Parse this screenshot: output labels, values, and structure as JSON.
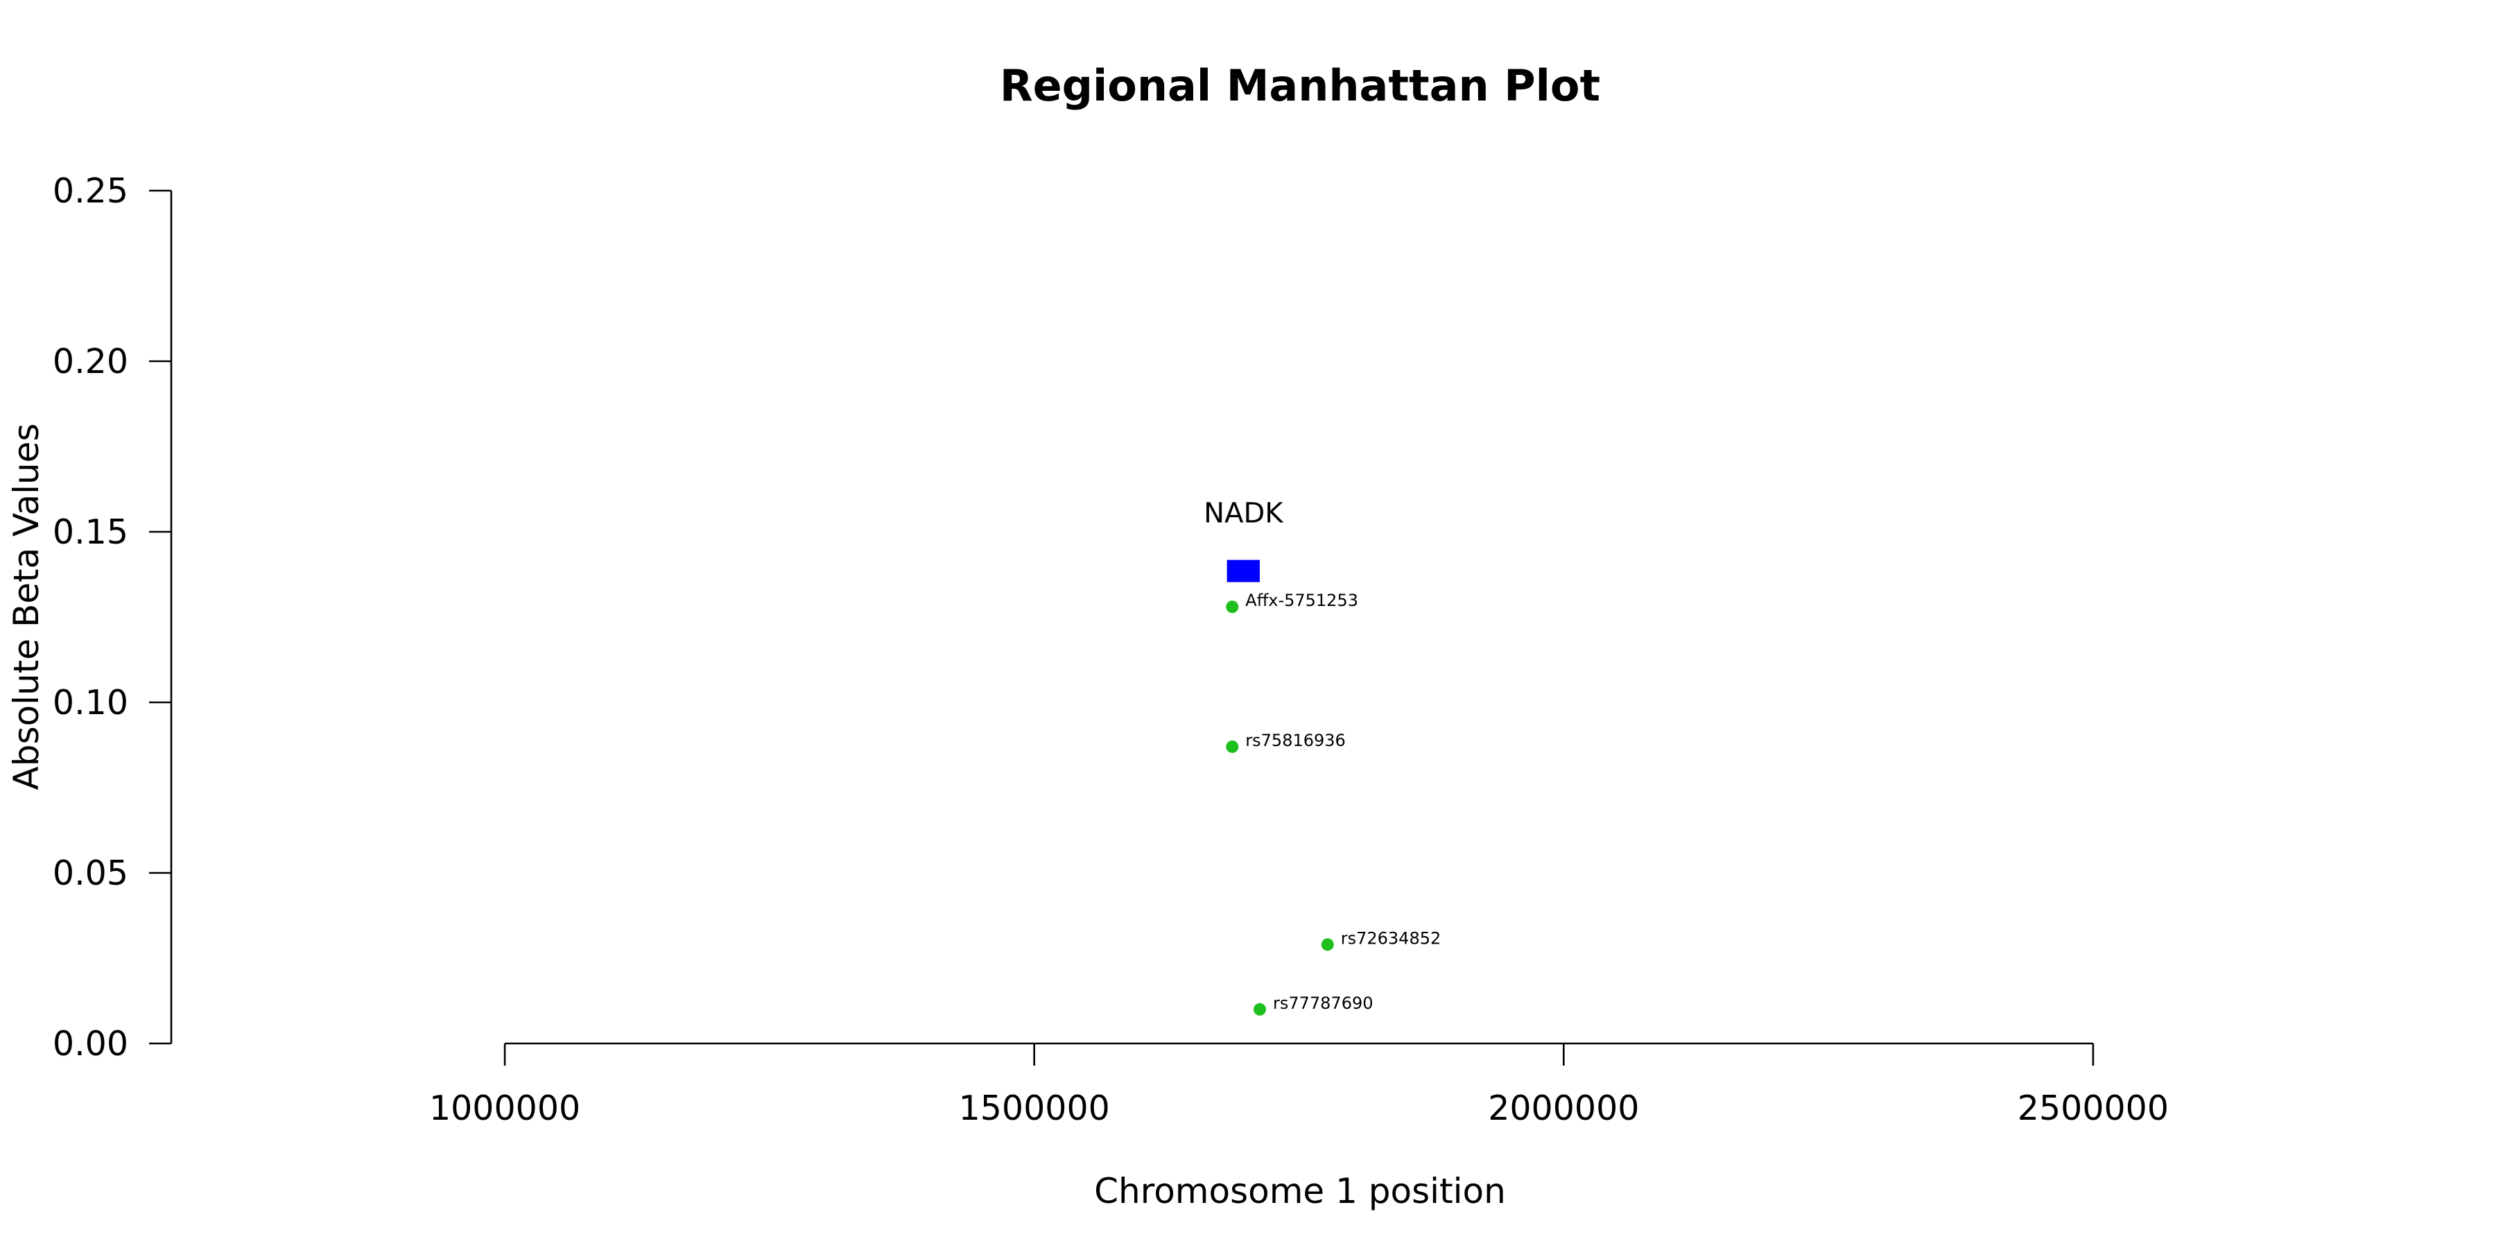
{
  "chart_data": {
    "type": "scatter",
    "title": "Regional Manhattan Plot",
    "xlabel": "Chromosome 1 position",
    "ylabel": "Absolute Beta Values",
    "xlim": [
      685000,
      2815000
    ],
    "ylim": [
      0,
      0.25
    ],
    "x_ticks": [
      1000000,
      1500000,
      2000000,
      2500000
    ],
    "x_tick_labels": [
      "1000000",
      "1500000",
      "2000000",
      "2500000"
    ],
    "y_ticks": [
      0,
      0.05,
      0.1,
      0.15,
      0.2,
      0.25
    ],
    "y_tick_labels": [
      "0.00",
      "0.05",
      "0.10",
      "0.15",
      "0.20",
      "0.25"
    ],
    "grid": false,
    "series": [
      {
        "color": "#1fbf1f",
        "points": [
          {
            "label": "Affx-5751253",
            "x": 1687000,
            "y": 0.128
          },
          {
            "label": "rs75816936",
            "x": 1687000,
            "y": 0.087
          },
          {
            "label": "rs72634852",
            "x": 1777000,
            "y": 0.029
          },
          {
            "label": "rs77787690",
            "x": 1713000,
            "y": 0.01
          }
        ]
      }
    ],
    "genes": [
      {
        "name": "NADK",
        "start": 1682000,
        "end": 1713000,
        "y": 0.1385,
        "color": "#0000ff"
      }
    ]
  }
}
